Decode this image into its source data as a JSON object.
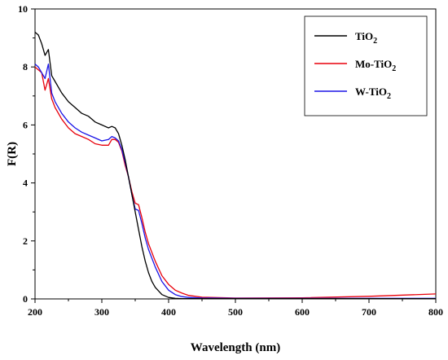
{
  "chart_data": {
    "type": "line",
    "title": "",
    "xlabel": "Wavelength (nm)",
    "ylabel": "F(R)",
    "xlim": [
      200,
      800
    ],
    "ylim": [
      0,
      10
    ],
    "xticks": [
      "200",
      "300",
      "400",
      "500",
      "600",
      "700",
      "800"
    ],
    "yticks": [
      "0",
      "2",
      "4",
      "6",
      "8",
      "10"
    ],
    "grid": false,
    "legend_position": "top-right",
    "series": [
      {
        "name": "TiO",
        "subscript": "2",
        "color": "#000000",
        "x": [
          200,
          205,
          210,
          215,
          220,
          225,
          230,
          240,
          250,
          260,
          270,
          280,
          290,
          300,
          310,
          315,
          320,
          325,
          330,
          335,
          340,
          345,
          350,
          355,
          360,
          365,
          370,
          375,
          380,
          390,
          400,
          410,
          420,
          450,
          500,
          600,
          700,
          800
        ],
        "y": [
          9.2,
          9.1,
          8.8,
          8.4,
          8.6,
          7.7,
          7.5,
          7.1,
          6.8,
          6.6,
          6.4,
          6.3,
          6.1,
          6.0,
          5.9,
          5.95,
          5.9,
          5.7,
          5.3,
          4.8,
          4.2,
          3.6,
          3.0,
          2.4,
          1.8,
          1.3,
          0.9,
          0.6,
          0.4,
          0.15,
          0.05,
          0.02,
          0.01,
          0.01,
          0.01,
          0.01,
          0.01,
          0.01
        ]
      },
      {
        "name": "Mo-TiO",
        "subscript": "2",
        "color": "#e8000b",
        "x": [
          200,
          205,
          210,
          215,
          220,
          225,
          230,
          240,
          250,
          260,
          270,
          280,
          290,
          300,
          310,
          315,
          320,
          325,
          330,
          335,
          340,
          345,
          350,
          355,
          360,
          365,
          370,
          380,
          390,
          400,
          410,
          420,
          430,
          450,
          500,
          600,
          700,
          800
        ],
        "y": [
          8.0,
          7.9,
          7.8,
          7.2,
          7.6,
          6.9,
          6.6,
          6.2,
          5.9,
          5.7,
          5.6,
          5.5,
          5.35,
          5.3,
          5.3,
          5.5,
          5.5,
          5.4,
          5.1,
          4.6,
          4.2,
          3.7,
          3.3,
          3.25,
          2.8,
          2.3,
          1.9,
          1.3,
          0.8,
          0.5,
          0.3,
          0.2,
          0.12,
          0.06,
          0.03,
          0.04,
          0.09,
          0.17
        ]
      },
      {
        "name": "W-TiO",
        "subscript": "2",
        "color": "#1a14e6",
        "x": [
          200,
          205,
          210,
          215,
          220,
          225,
          230,
          240,
          250,
          260,
          270,
          280,
          290,
          300,
          310,
          315,
          320,
          325,
          330,
          335,
          340,
          345,
          350,
          355,
          360,
          365,
          370,
          380,
          390,
          400,
          410,
          420,
          430,
          450,
          500,
          600,
          700,
          800
        ],
        "y": [
          8.1,
          8.0,
          7.8,
          7.6,
          8.1,
          7.1,
          6.8,
          6.4,
          6.1,
          5.9,
          5.75,
          5.65,
          5.55,
          5.45,
          5.5,
          5.6,
          5.55,
          5.45,
          5.15,
          4.7,
          4.2,
          3.6,
          3.1,
          3.05,
          2.6,
          2.1,
          1.7,
          1.1,
          0.6,
          0.3,
          0.15,
          0.08,
          0.05,
          0.03,
          0.02,
          0.02,
          0.02,
          0.02
        ]
      }
    ]
  }
}
